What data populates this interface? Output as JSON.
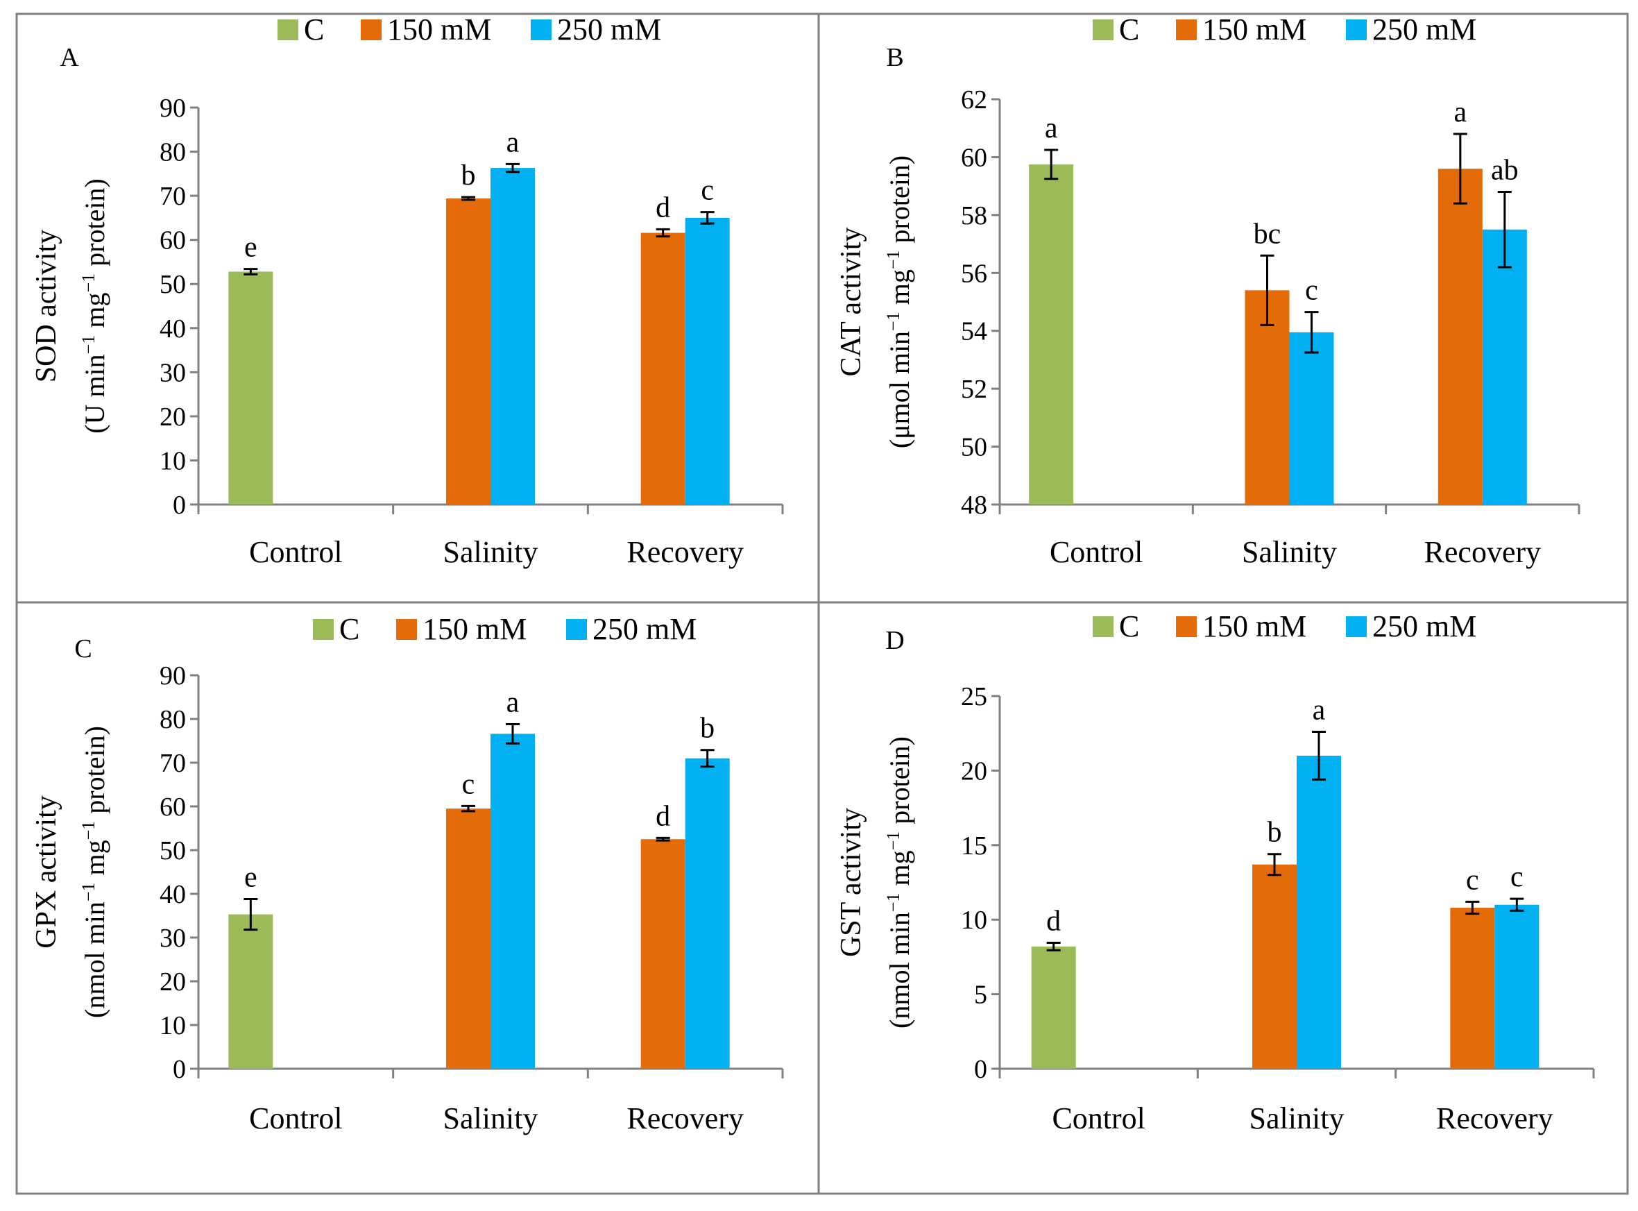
{
  "colors": {
    "C": "#9BBB59",
    "150 mM": "#E36C09",
    "250 mM": "#00B0F0",
    "axis": "#808080",
    "errorbar": "#000000"
  },
  "chart_data": [
    {
      "panel": "A",
      "type": "bar",
      "title": "",
      "ylabel_line1": "SOD activity",
      "ylabel_line2": {
        "pre": "(U min",
        "e1": "−1",
        "mid": " mg",
        "e2": "−1",
        "post": " protein)"
      },
      "categories": [
        "Control",
        "Salinity",
        "Recovery"
      ],
      "legend": [
        "C",
        "150 mM",
        "250 mM"
      ],
      "ylim": [
        0,
        90
      ],
      "yticks": [
        0,
        10,
        20,
        30,
        40,
        50,
        60,
        70,
        80,
        90
      ],
      "bars": [
        {
          "category": "Control",
          "series": "C",
          "value": 52.8,
          "error": 0.6,
          "letter": "e"
        },
        {
          "category": "Salinity",
          "series": "150 mM",
          "value": 69.4,
          "error": 0.3,
          "letter": "b"
        },
        {
          "category": "Salinity",
          "series": "250 mM",
          "value": 76.3,
          "error": 0.9,
          "letter": "a"
        },
        {
          "category": "Recovery",
          "series": "150 mM",
          "value": 61.6,
          "error": 0.8,
          "letter": "d"
        },
        {
          "category": "Recovery",
          "series": "250 mM",
          "value": 65.0,
          "error": 1.3,
          "letter": "c"
        }
      ]
    },
    {
      "panel": "B",
      "type": "bar",
      "title": "",
      "ylabel_line1": "CAT activity",
      "ylabel_line2": {
        "pre": "(μmol min",
        "e1": "−1",
        "mid": " mg",
        "e2": "−1",
        "post": " protein)"
      },
      "categories": [
        "Control",
        "Salinity",
        "Recovery"
      ],
      "legend": [
        "C",
        "150 mM",
        "250 mM"
      ],
      "ylim": [
        48,
        62
      ],
      "yticks": [
        48,
        50,
        52,
        54,
        56,
        58,
        60,
        62
      ],
      "bars": [
        {
          "category": "Control",
          "series": "C",
          "value": 59.75,
          "error": 0.5,
          "letter": "a"
        },
        {
          "category": "Salinity",
          "series": "150 mM",
          "value": 55.4,
          "error": 1.2,
          "letter": "bc"
        },
        {
          "category": "Salinity",
          "series": "250 mM",
          "value": 53.95,
          "error": 0.7,
          "letter": "c"
        },
        {
          "category": "Recovery",
          "series": "150 mM",
          "value": 59.6,
          "error": 1.2,
          "letter": "a"
        },
        {
          "category": "Recovery",
          "series": "250 mM",
          "value": 57.5,
          "error": 1.3,
          "letter": "ab"
        }
      ]
    },
    {
      "panel": "C",
      "type": "bar",
      "title": "",
      "ylabel_line1": "GPX activity",
      "ylabel_line2": {
        "pre": "(nmol min",
        "e1": "−1",
        "mid": " mg",
        "e2": "−1",
        "post": " protein)"
      },
      "categories": [
        "Control",
        "Salinity",
        "Recovery"
      ],
      "legend": [
        "C",
        "150 mM",
        "250 mM"
      ],
      "ylim": [
        0,
        90
      ],
      "yticks": [
        0,
        10,
        20,
        30,
        40,
        50,
        60,
        70,
        80,
        90
      ],
      "bars": [
        {
          "category": "Control",
          "series": "C",
          "value": 35.3,
          "error": 3.5,
          "letter": "e"
        },
        {
          "category": "Salinity",
          "series": "150 mM",
          "value": 59.5,
          "error": 0.6,
          "letter": "c"
        },
        {
          "category": "Salinity",
          "series": "250 mM",
          "value": 76.6,
          "error": 2.2,
          "letter": "a"
        },
        {
          "category": "Recovery",
          "series": "150 mM",
          "value": 52.5,
          "error": 0.3,
          "letter": "d"
        },
        {
          "category": "Recovery",
          "series": "250 mM",
          "value": 71.0,
          "error": 1.9,
          "letter": "b"
        }
      ]
    },
    {
      "panel": "D",
      "type": "bar",
      "title": "",
      "ylabel_line1": "GST activity",
      "ylabel_line2": {
        "pre": "(nmol min",
        "e1": "−1",
        "mid": " mg",
        "e2": "−1",
        "post": " protein)"
      },
      "categories": [
        "Control",
        "Salinity",
        "Recovery"
      ],
      "legend": [
        "C",
        "150 mM",
        "250 mM"
      ],
      "ylim": [
        0,
        25
      ],
      "yticks": [
        0,
        5,
        10,
        15,
        20,
        25
      ],
      "bars": [
        {
          "category": "Control",
          "series": "C",
          "value": 8.2,
          "error": 0.25,
          "letter": "d"
        },
        {
          "category": "Salinity",
          "series": "150 mM",
          "value": 13.7,
          "error": 0.7,
          "letter": "b"
        },
        {
          "category": "Salinity",
          "series": "250 mM",
          "value": 21.0,
          "error": 1.6,
          "letter": "a"
        },
        {
          "category": "Recovery",
          "series": "150 mM",
          "value": 10.8,
          "error": 0.4,
          "letter": "c"
        },
        {
          "category": "Recovery",
          "series": "250 mM",
          "value": 11.0,
          "error": 0.4,
          "letter": "c"
        }
      ]
    }
  ]
}
